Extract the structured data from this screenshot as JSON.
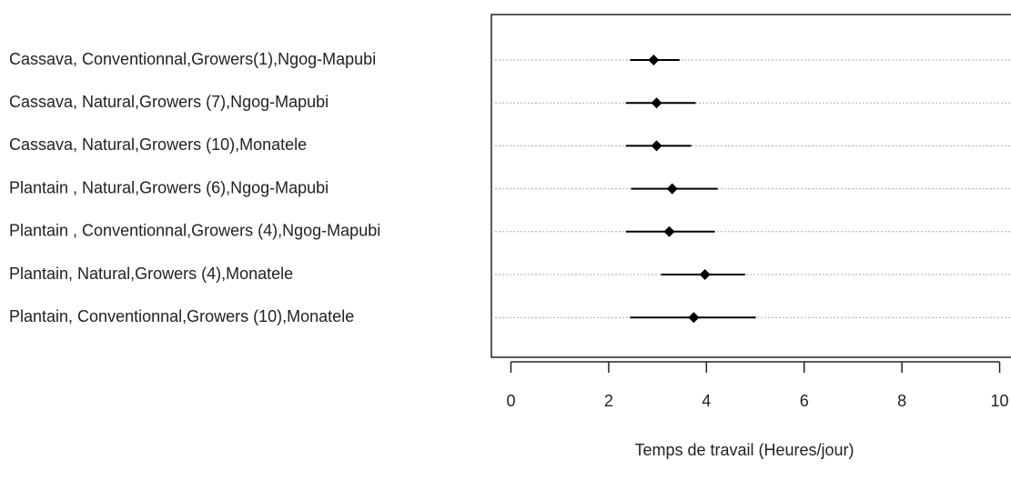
{
  "chart_data": {
    "type": "dotplot",
    "x_label": "Temps de travail (Heures/jour)",
    "categories": [
      "Cassava, Conventionnal,Growers(1),Ngog-Mapubi",
      "Cassava, Natural,Growers (7),Ngog-Mapubi",
      "Cassava, Natural,Growers (10),Monatele",
      "Plantain , Natural,Growers (6),Ngog-Mapubi",
      "Plantain , Conventionnal,Growers (4),Ngog-Mapubi",
      "Plantain, Natural,Growers (4),Monatele",
      "Plantain, Conventionnal,Growers (10),Monatele"
    ],
    "values": [
      2.92,
      2.98,
      2.98,
      3.3,
      3.24,
      3.97,
      3.74
    ],
    "lower": [
      2.44,
      2.35,
      2.35,
      2.46,
      2.35,
      3.07,
      2.44
    ],
    "upper": [
      3.45,
      3.78,
      3.69,
      4.23,
      4.17,
      4.79,
      5.01
    ],
    "color": "#000000",
    "xlim": [
      -0.4,
      10.4
    ],
    "xticks": [
      0,
      2,
      4,
      6,
      8,
      10
    ],
    "grid": true
  }
}
